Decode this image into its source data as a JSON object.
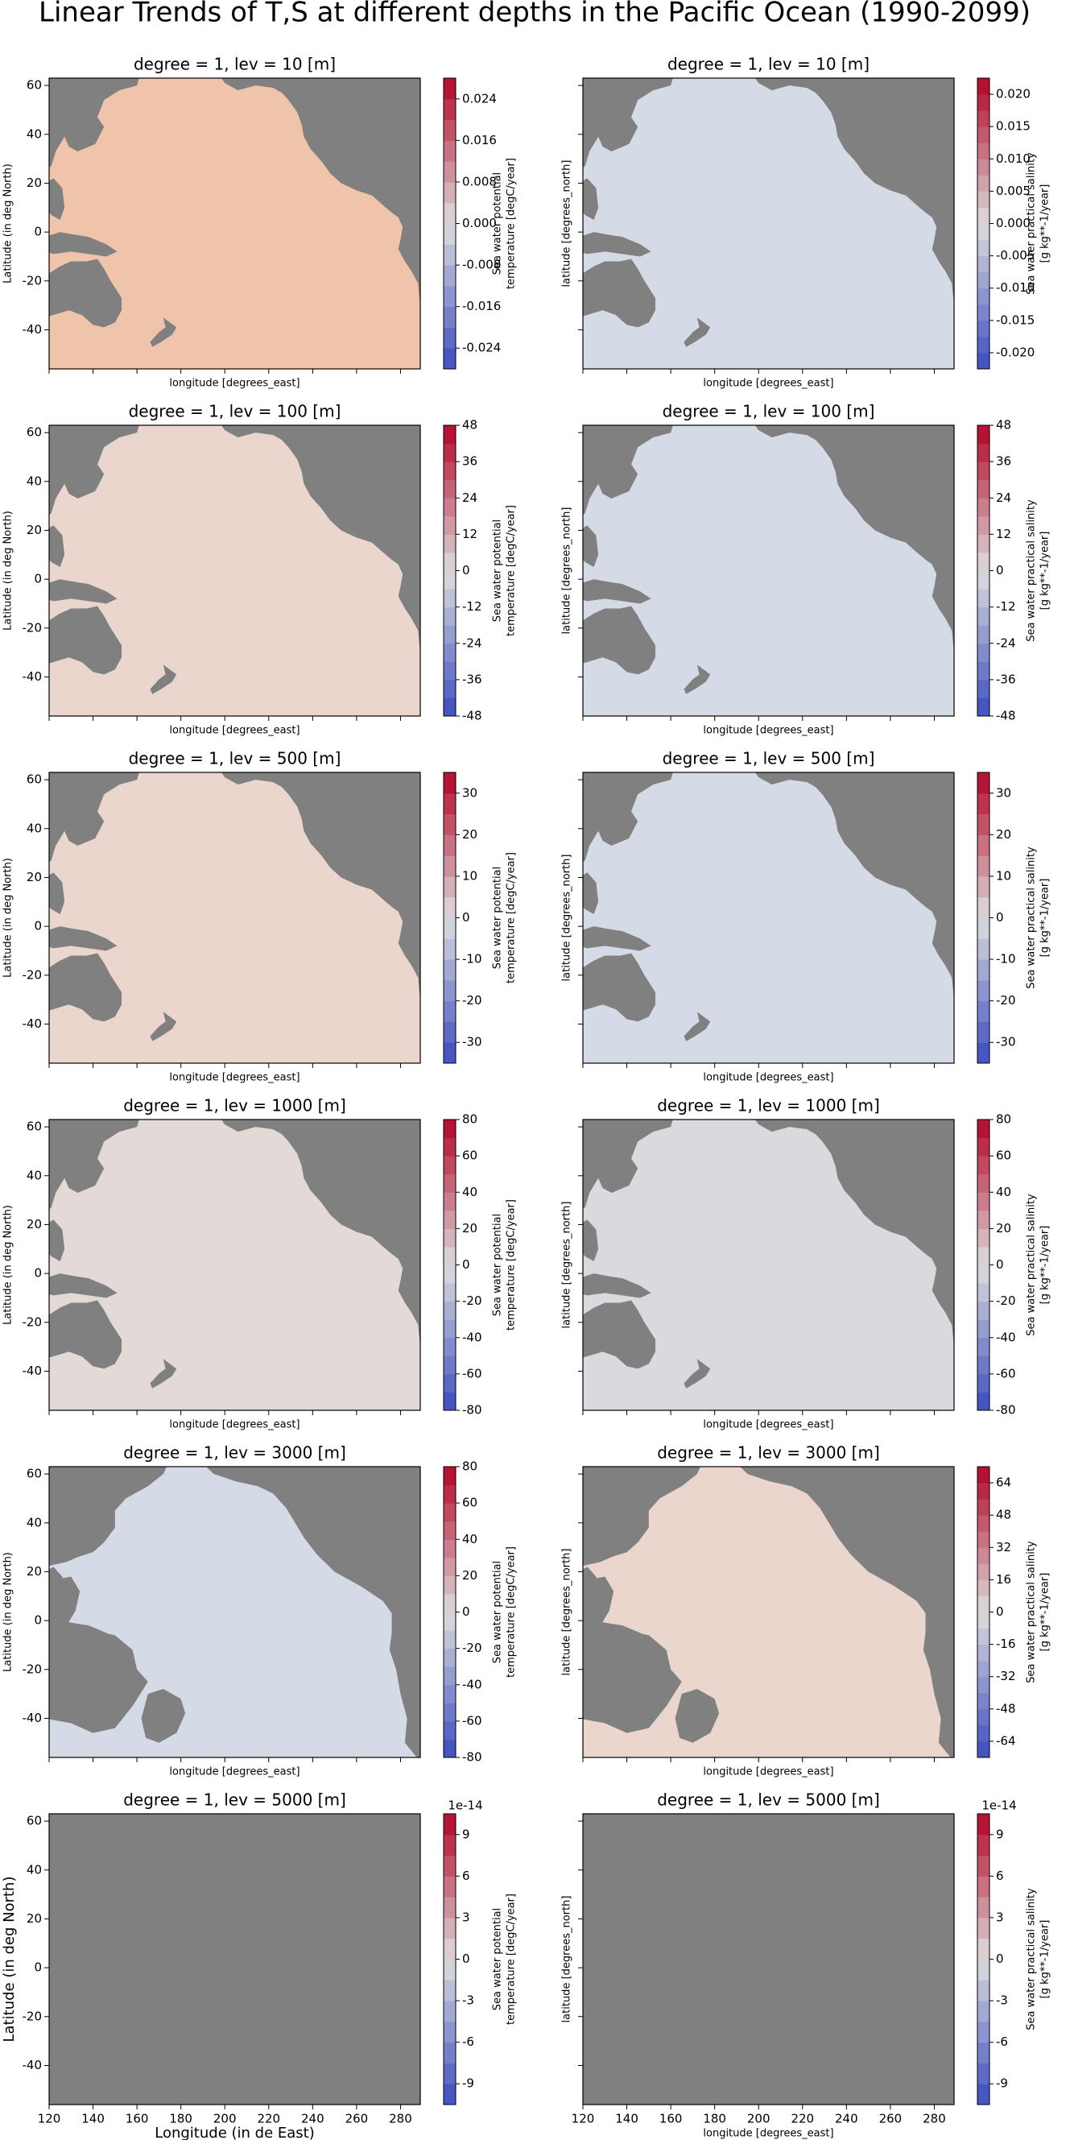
{
  "title": "Linear Trends of T,S at different depths in the Pacific Ocean (1990-2099)",
  "chart_data": [
    {
      "type": "map",
      "title": "degree = 1, lev = 10 [m]",
      "xlabel": "longitude [degrees_east]",
      "ylabel": "Latitude (in deg North)",
      "xlim": [
        120,
        289
      ],
      "ylim": [
        -56,
        63
      ],
      "xticks": [
        120,
        140,
        160,
        180,
        200,
        220,
        240,
        260,
        280
      ],
      "yticks": [
        -40,
        -20,
        0,
        20,
        40,
        60
      ],
      "show_xticklabels": false,
      "show_yticklabels": true,
      "ocean_color": "#f0c3ab",
      "land_color": "#808080",
      "colorbar": {
        "label": [
          "Sea water potential",
          "temperature [degC/year]"
        ],
        "lim": [
          -0.028,
          0.028
        ],
        "ticks": [
          -0.024,
          -0.016,
          -0.008,
          {
            "value": 0,
            "label": "0.000"
          },
          0.008,
          0.016,
          0.024
        ]
      }
    },
    {
      "type": "map",
      "title": "degree = 1, lev = 10 [m]",
      "xlabel": "longitude [degrees_east]",
      "ylabel": "latitude [degrees_north]",
      "xlim": [
        120,
        289
      ],
      "ylim": [
        -56,
        63
      ],
      "xticks": [
        120,
        140,
        160,
        180,
        200,
        220,
        240,
        260,
        280
      ],
      "yticks": [
        -40,
        -20,
        0,
        20,
        40,
        60
      ],
      "show_xticklabels": false,
      "show_yticklabels": false,
      "ocean_color": "#d5dbe6",
      "land_color": "#808080",
      "colorbar": {
        "label": [
          "Sea water practical salinity",
          "[g kg**-1/year]"
        ],
        "lim": [
          -0.0225,
          0.0225
        ],
        "ticks": [
          {
            "value": -0.02,
            "label": "-0.020"
          },
          -0.015,
          {
            "value": -0.01,
            "label": "-0.010"
          },
          -0.005,
          {
            "value": 0,
            "label": "0.000"
          },
          0.005,
          {
            "value": 0.01,
            "label": "0.010"
          },
          0.015,
          {
            "value": 0.02,
            "label": "0.020"
          }
        ]
      }
    },
    {
      "type": "map",
      "title": "degree = 1, lev = 100 [m]",
      "xlabel": "longitude [degrees_east]",
      "ylabel": "Latitude (in deg North)",
      "xlim": [
        120,
        289
      ],
      "ylim": [
        -56,
        63
      ],
      "xticks": [
        120,
        140,
        160,
        180,
        200,
        220,
        240,
        260,
        280
      ],
      "yticks": [
        -40,
        -20,
        0,
        20,
        40,
        60
      ],
      "show_xticklabels": false,
      "show_yticklabels": true,
      "ocean_color": "#ead6cc",
      "land_color": "#808080",
      "colorbar": {
        "label": [
          "Sea water potential",
          "temperature [degC/year]"
        ],
        "lim": [
          -48,
          48
        ],
        "ticks": [
          -48,
          -36,
          -24,
          -12,
          0,
          12,
          24,
          36,
          48
        ]
      }
    },
    {
      "type": "map",
      "title": "degree = 1, lev = 100 [m]",
      "xlabel": "longitude [degrees_east]",
      "ylabel": "latitude [degrees_north]",
      "xlim": [
        120,
        289
      ],
      "ylim": [
        -56,
        63
      ],
      "xticks": [
        120,
        140,
        160,
        180,
        200,
        220,
        240,
        260,
        280
      ],
      "yticks": [
        -40,
        -20,
        0,
        20,
        40,
        60
      ],
      "show_xticklabels": false,
      "show_yticklabels": false,
      "ocean_color": "#d5dbe6",
      "land_color": "#808080",
      "colorbar": {
        "label": [
          "Sea water practical salinity",
          "[g kg**-1/year]"
        ],
        "lim": [
          -48,
          48
        ],
        "ticks": [
          -48,
          -36,
          -24,
          -12,
          0,
          12,
          24,
          36,
          48
        ]
      }
    },
    {
      "type": "map",
      "title": "degree = 1, lev = 500 [m]",
      "xlabel": "longitude [degrees_east]",
      "ylabel": "Latitude (in deg North)",
      "xlim": [
        120,
        289
      ],
      "ylim": [
        -56,
        63
      ],
      "xticks": [
        120,
        140,
        160,
        180,
        200,
        220,
        240,
        260,
        280
      ],
      "yticks": [
        -40,
        -20,
        0,
        20,
        40,
        60
      ],
      "show_xticklabels": false,
      "show_yticklabels": true,
      "ocean_color": "#ead6cc",
      "land_color": "#808080",
      "colorbar": {
        "label": [
          "Sea water potential",
          "temperature [degC/year]"
        ],
        "lim": [
          -35,
          35
        ],
        "ticks": [
          -30,
          -20,
          -10,
          0,
          10,
          20,
          30
        ]
      }
    },
    {
      "type": "map",
      "title": "degree = 1, lev = 500 [m]",
      "xlabel": "longitude [degrees_east]",
      "ylabel": "latitude [degrees_north]",
      "xlim": [
        120,
        289
      ],
      "ylim": [
        -56,
        63
      ],
      "xticks": [
        120,
        140,
        160,
        180,
        200,
        220,
        240,
        260,
        280
      ],
      "yticks": [
        -40,
        -20,
        0,
        20,
        40,
        60
      ],
      "show_xticklabels": false,
      "show_yticklabels": false,
      "ocean_color": "#d5dbe6",
      "land_color": "#808080",
      "colorbar": {
        "label": [
          "Sea water practical salinity",
          "[g kg**-1/year]"
        ],
        "lim": [
          -35,
          35
        ],
        "ticks": [
          -30,
          -20,
          -10,
          0,
          10,
          20,
          30
        ]
      }
    },
    {
      "type": "map",
      "title": "degree = 1, lev = 1000 [m]",
      "xlabel": "longitude [degrees_east]",
      "ylabel": "Latitude (in deg North)",
      "xlim": [
        120,
        289
      ],
      "ylim": [
        -56,
        63
      ],
      "xticks": [
        120,
        140,
        160,
        180,
        200,
        220,
        240,
        260,
        280
      ],
      "yticks": [
        -40,
        -20,
        0,
        20,
        40,
        60
      ],
      "show_xticklabels": false,
      "show_yticklabels": true,
      "ocean_color": "#e3d9d6",
      "land_color": "#808080",
      "colorbar": {
        "label": [
          "Sea water potential",
          "temperature [degC/year]"
        ],
        "lim": [
          -80,
          80
        ],
        "ticks": [
          -80,
          -60,
          -40,
          -20,
          0,
          20,
          40,
          60,
          80
        ]
      }
    },
    {
      "type": "map",
      "title": "degree = 1, lev = 1000 [m]",
      "xlabel": "longitude [degrees_east]",
      "ylabel": "latitude [degrees_north]",
      "xlim": [
        120,
        289
      ],
      "ylim": [
        -56,
        63
      ],
      "xticks": [
        120,
        140,
        160,
        180,
        200,
        220,
        240,
        260,
        280
      ],
      "yticks": [
        -40,
        -20,
        0,
        20,
        40,
        60
      ],
      "show_xticklabels": false,
      "show_yticklabels": false,
      "ocean_color": "#dcd9de",
      "land_color": "#808080",
      "colorbar": {
        "label": [
          "Sea water practical salinity",
          "[g kg**-1/year]"
        ],
        "lim": [
          -80,
          80
        ],
        "ticks": [
          -80,
          -60,
          -40,
          -20,
          0,
          20,
          40,
          60,
          80
        ]
      }
    },
    {
      "type": "map",
      "title": "degree = 1, lev = 3000 [m]",
      "xlabel": "longitude [degrees_east]",
      "ylabel": "Latitude (in deg North)",
      "xlim": [
        120,
        289
      ],
      "ylim": [
        -56,
        63
      ],
      "xticks": [
        120,
        140,
        160,
        180,
        200,
        220,
        240,
        260,
        280
      ],
      "yticks": [
        -40,
        -20,
        0,
        20,
        40,
        60
      ],
      "show_xticklabels": false,
      "show_yticklabels": true,
      "ocean_color": "#d5dbe6",
      "land_color": "#808080",
      "colorbar": {
        "label": [
          "Sea water potential",
          "temperature [degC/year]"
        ],
        "lim": [
          -80,
          80
        ],
        "ticks": [
          -80,
          -60,
          -40,
          -20,
          0,
          20,
          40,
          60,
          80
        ]
      }
    },
    {
      "type": "map",
      "title": "degree = 1, lev = 3000 [m]",
      "xlabel": "longitude [degrees_east]",
      "ylabel": "latitude [degrees_north]",
      "xlim": [
        120,
        289
      ],
      "ylim": [
        -56,
        63
      ],
      "xticks": [
        120,
        140,
        160,
        180,
        200,
        220,
        240,
        260,
        280
      ],
      "yticks": [
        -40,
        -20,
        0,
        20,
        40,
        60
      ],
      "show_xticklabels": false,
      "show_yticklabels": false,
      "ocean_color": "#ead6cc",
      "land_color": "#808080",
      "colorbar": {
        "label": [
          "Sea water practical salinity",
          "[g kg**-1/year]"
        ],
        "lim": [
          -72,
          72
        ],
        "ticks": [
          -64,
          -48,
          -32,
          -16,
          0,
          16,
          32,
          48,
          64
        ]
      }
    },
    {
      "type": "map",
      "title": "degree = 1, lev = 5000 [m]",
      "xlabel": "Longitude (in de East)",
      "ylabel": "Latitude (in deg North)",
      "xlim": [
        120,
        289
      ],
      "ylim": [
        -56,
        63
      ],
      "xticks": [
        120,
        140,
        160,
        180,
        200,
        220,
        240,
        260,
        280
      ],
      "yticks": [
        -40,
        -20,
        0,
        20,
        40,
        60
      ],
      "show_xticklabels": true,
      "show_yticklabels": true,
      "ocean_color": "#808080",
      "land_color": "#808080",
      "colorbar": {
        "label": [
          "Sea water potential",
          "temperature [degC/year]"
        ],
        "lim": [
          -10.5,
          10.5
        ],
        "ticks": [
          -9,
          -6,
          -3,
          0,
          3,
          6,
          9
        ],
        "offset_label": "1e-14"
      }
    },
    {
      "type": "map",
      "title": "degree = 1, lev = 5000 [m]",
      "xlabel": "longitude [degrees_east]",
      "ylabel": "latitude [degrees_north]",
      "xlim": [
        120,
        289
      ],
      "ylim": [
        -56,
        63
      ],
      "xticks": [
        120,
        140,
        160,
        180,
        200,
        220,
        240,
        260,
        280
      ],
      "yticks": [
        -40,
        -20,
        0,
        20,
        40,
        60
      ],
      "show_xticklabels": true,
      "show_yticklabels": false,
      "ocean_color": "#808080",
      "land_color": "#808080",
      "colorbar": {
        "label": [
          "Sea water practical salinity",
          "[g kg**-1/year]"
        ],
        "lim": [
          -10.5,
          10.5
        ],
        "ticks": [
          -9,
          -6,
          -3,
          0,
          3,
          6,
          9
        ],
        "offset_label": "1e-14"
      }
    }
  ]
}
